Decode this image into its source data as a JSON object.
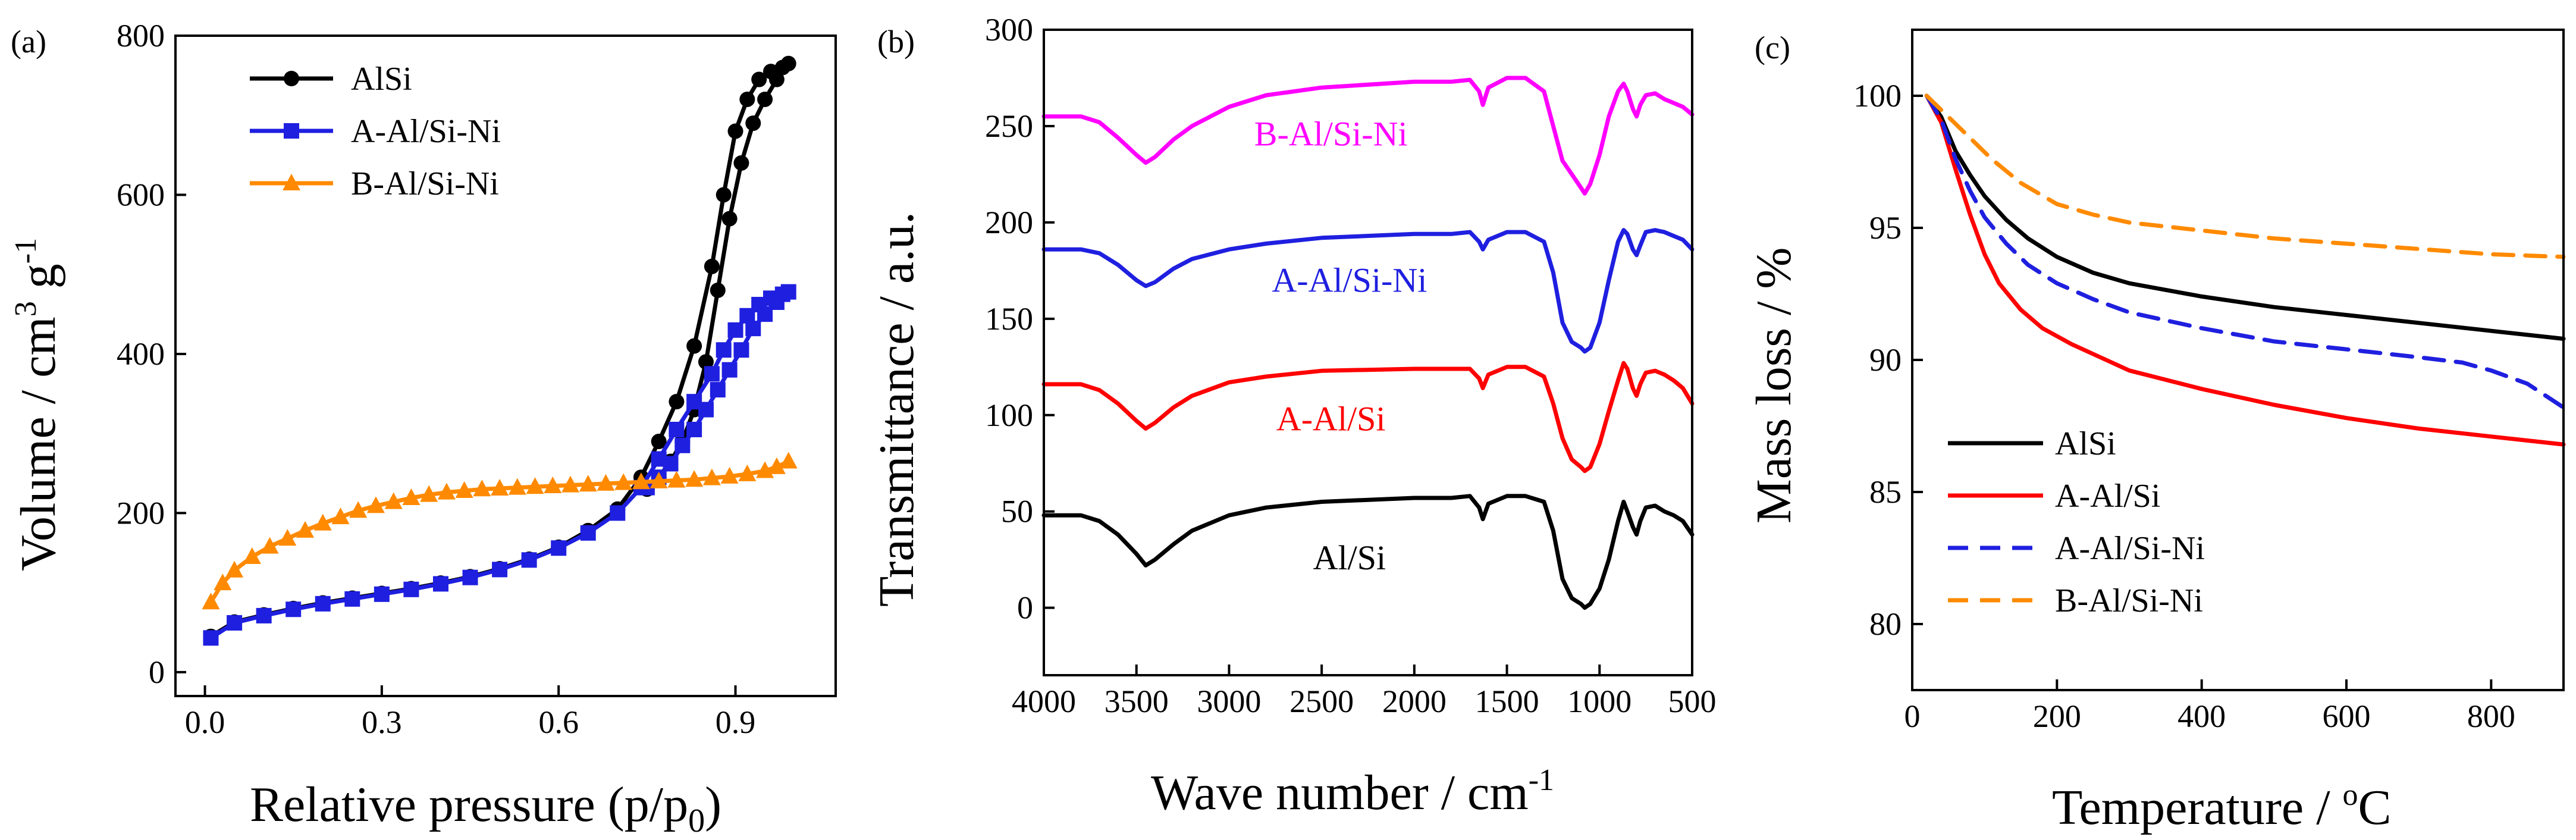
{
  "chart_data": [
    {
      "panel": "(a)",
      "type": "line",
      "xlabel": "Relative pressure (p/p",
      "xlabel_sub": "0",
      "xlabel_close": ")",
      "ylabel": "Volume / cm",
      "ylabel_sup": "3",
      "ylabel_unit": " g",
      "ylabel_sup2": "-1",
      "xlim": [
        -0.05,
        1.07
      ],
      "ylim": [
        -30,
        800
      ],
      "xticks": [
        0.0,
        0.3,
        0.6,
        0.9
      ],
      "xtick_labels": [
        "0.0",
        "0.3",
        "0.6",
        "0.9"
      ],
      "yticks": [
        0,
        200,
        400,
        600,
        800
      ],
      "ytick_labels": [
        "0",
        "200",
        "400",
        "600",
        "800"
      ],
      "legend": "top-left",
      "series": [
        {
          "name": "AlSi",
          "color": "#000000",
          "marker": "circle",
          "x": [
            0.01,
            0.05,
            0.1,
            0.15,
            0.2,
            0.25,
            0.3,
            0.35,
            0.4,
            0.45,
            0.5,
            0.55,
            0.6,
            0.65,
            0.7,
            0.74,
            0.77,
            0.8,
            0.83,
            0.86,
            0.88,
            0.9,
            0.92,
            0.94,
            0.96,
            0.98,
            0.99,
            0.97,
            0.95,
            0.93,
            0.91,
            0.89,
            0.87,
            0.85,
            0.83,
            0.81,
            0.79,
            0.77,
            0.75
          ],
          "y": [
            45,
            63,
            72,
            80,
            87,
            93,
            99,
            105,
            112,
            120,
            130,
            142,
            157,
            178,
            205,
            245,
            290,
            340,
            410,
            510,
            600,
            680,
            720,
            745,
            755,
            760,
            765,
            745,
            720,
            690,
            640,
            570,
            480,
            390,
            330,
            290,
            265,
            245,
            230
          ]
        },
        {
          "name": "A-Al/Si-Ni",
          "color": "#1f1fe0",
          "marker": "square",
          "x": [
            0.01,
            0.05,
            0.1,
            0.15,
            0.2,
            0.25,
            0.3,
            0.35,
            0.4,
            0.45,
            0.5,
            0.55,
            0.6,
            0.65,
            0.7,
            0.74,
            0.77,
            0.8,
            0.83,
            0.86,
            0.88,
            0.9,
            0.92,
            0.94,
            0.96,
            0.98,
            0.99,
            0.97,
            0.95,
            0.93,
            0.91,
            0.89,
            0.87,
            0.85,
            0.83,
            0.81,
            0.79,
            0.77,
            0.75
          ],
          "y": [
            43,
            62,
            71,
            79,
            86,
            92,
            98,
            104,
            111,
            119,
            129,
            141,
            156,
            175,
            200,
            232,
            268,
            305,
            340,
            375,
            405,
            430,
            448,
            462,
            470,
            475,
            478,
            465,
            450,
            432,
            405,
            380,
            355,
            330,
            305,
            285,
            262,
            245,
            232
          ]
        },
        {
          "name": "B-Al/Si-Ni",
          "color": "#ff8a00",
          "marker": "triangle",
          "x": [
            0.01,
            0.03,
            0.05,
            0.08,
            0.11,
            0.14,
            0.17,
            0.2,
            0.23,
            0.26,
            0.29,
            0.32,
            0.35,
            0.38,
            0.41,
            0.44,
            0.47,
            0.5,
            0.53,
            0.56,
            0.59,
            0.62,
            0.65,
            0.68,
            0.71,
            0.74,
            0.77,
            0.8,
            0.83,
            0.86,
            0.89,
            0.92,
            0.95,
            0.97,
            0.99
          ],
          "y": [
            88,
            112,
            128,
            145,
            158,
            168,
            178,
            187,
            195,
            203,
            209,
            214,
            219,
            223,
            226,
            228,
            230,
            231,
            232,
            233,
            234,
            235,
            236,
            237,
            238,
            239,
            240,
            241,
            242,
            244,
            246,
            249,
            253,
            258,
            265
          ]
        }
      ]
    },
    {
      "panel": "(b)",
      "type": "line",
      "xlabel": "Wave number / cm",
      "xlabel_sup": "-1",
      "ylabel": "Transmittance / a.u.",
      "xlim": [
        4000,
        500
      ],
      "ylim": [
        -35,
        300
      ],
      "xticks": [
        4000,
        3500,
        3000,
        2500,
        2000,
        1500,
        1000,
        500
      ],
      "xtick_labels": [
        "4000",
        "3500",
        "3000",
        "2500",
        "2000",
        "1500",
        "1000",
        "500"
      ],
      "yticks": [
        0,
        50,
        100,
        150,
        200,
        250,
        300
      ],
      "ytick_labels": [
        "0",
        "50",
        "100",
        "150",
        "200",
        "250",
        "300"
      ],
      "series": [
        {
          "name": "Al/Si",
          "color": "#000000",
          "x": [
            4000,
            3800,
            3700,
            3600,
            3500,
            3450,
            3400,
            3300,
            3200,
            3000,
            2800,
            2500,
            2000,
            1800,
            1700,
            1650,
            1630,
            1600,
            1500,
            1400,
            1300,
            1250,
            1200,
            1150,
            1100,
            1080,
            1050,
            1000,
            950,
            900,
            870,
            850,
            820,
            800,
            780,
            750,
            700,
            650,
            600,
            550,
            500
          ],
          "y": [
            48,
            48,
            45,
            38,
            28,
            22,
            25,
            33,
            40,
            48,
            52,
            55,
            57,
            57,
            58,
            52,
            46,
            54,
            58,
            58,
            55,
            40,
            15,
            5,
            2,
            0,
            2,
            10,
            25,
            45,
            55,
            50,
            42,
            38,
            45,
            52,
            53,
            50,
            48,
            45,
            38
          ]
        },
        {
          "name": "A-Al/Si",
          "color": "#ff0000",
          "x": [
            4000,
            3800,
            3700,
            3600,
            3500,
            3450,
            3400,
            3300,
            3200,
            3000,
            2800,
            2500,
            2000,
            1800,
            1700,
            1650,
            1630,
            1600,
            1500,
            1400,
            1300,
            1250,
            1200,
            1150,
            1100,
            1080,
            1050,
            1000,
            950,
            900,
            870,
            850,
            820,
            800,
            780,
            750,
            700,
            650,
            600,
            550,
            500
          ],
          "y": [
            116,
            116,
            113,
            106,
            97,
            93,
            96,
            104,
            110,
            117,
            120,
            123,
            124,
            124,
            124,
            119,
            114,
            121,
            125,
            125,
            120,
            106,
            88,
            77,
            73,
            71,
            73,
            85,
            102,
            118,
            127,
            124,
            114,
            110,
            116,
            122,
            123,
            121,
            118,
            114,
            106
          ]
        },
        {
          "name": "A-Al/Si-Ni",
          "color": "#1f1fe0",
          "x": [
            4000,
            3800,
            3700,
            3600,
            3500,
            3450,
            3400,
            3300,
            3200,
            3000,
            2800,
            2500,
            2000,
            1800,
            1700,
            1650,
            1630,
            1600,
            1500,
            1400,
            1300,
            1250,
            1200,
            1150,
            1100,
            1080,
            1050,
            1000,
            950,
            900,
            870,
            850,
            820,
            800,
            780,
            750,
            700,
            650,
            600,
            550,
            500
          ],
          "y": [
            186,
            186,
            184,
            178,
            170,
            167,
            169,
            176,
            181,
            186,
            189,
            192,
            194,
            194,
            195,
            190,
            186,
            191,
            195,
            195,
            190,
            174,
            148,
            138,
            135,
            133,
            135,
            148,
            170,
            190,
            196,
            194,
            186,
            183,
            188,
            195,
            196,
            195,
            193,
            191,
            186
          ]
        },
        {
          "name": "B-Al/Si-Ni",
          "color": "#ff00ff",
          "x": [
            4000,
            3800,
            3700,
            3600,
            3500,
            3450,
            3400,
            3300,
            3200,
            3000,
            2800,
            2500,
            2000,
            1800,
            1700,
            1650,
            1630,
            1600,
            1500,
            1400,
            1300,
            1250,
            1200,
            1150,
            1100,
            1080,
            1050,
            1000,
            950,
            900,
            870,
            850,
            820,
            800,
            780,
            750,
            700,
            650,
            600,
            550,
            500
          ],
          "y": [
            255,
            255,
            252,
            244,
            235,
            231,
            234,
            243,
            250,
            260,
            266,
            270,
            273,
            273,
            274,
            268,
            261,
            270,
            275,
            275,
            268,
            250,
            232,
            225,
            218,
            215,
            220,
            235,
            255,
            268,
            272,
            268,
            259,
            255,
            261,
            266,
            267,
            264,
            262,
            260,
            256
          ]
        }
      ],
      "annotations": [
        {
          "text": "B-Al/Si-Ni",
          "color": "#ff00ff",
          "x": 2450,
          "y": 240
        },
        {
          "text": "A-Al/Si-Ni",
          "color": "#1f1fe0",
          "x": 2350,
          "y": 164
        },
        {
          "text": "A-Al/Si",
          "color": "#ff0000",
          "x": 2450,
          "y": 92
        },
        {
          "text": "Al/Si",
          "color": "#000000",
          "x": 2350,
          "y": 20
        }
      ]
    },
    {
      "panel": "(c)",
      "type": "line",
      "xlabel": "Temperature / ",
      "xlabel_sup": "o",
      "xlabel_unit": "C",
      "ylabel": "Mass loss / %",
      "xlim": [
        0,
        900
      ],
      "ylim": [
        77.5,
        102.5
      ],
      "xticks": [
        0,
        200,
        400,
        600,
        800
      ],
      "xtick_labels": [
        "0",
        "200",
        "400",
        "600",
        "800"
      ],
      "yticks": [
        80,
        85,
        90,
        95,
        100
      ],
      "ytick_labels": [
        "80",
        "85",
        "90",
        "95",
        "100"
      ],
      "legend": "bottom-left",
      "series": [
        {
          "name": "AlSi",
          "color": "#000000",
          "dash": "solid",
          "x": [
            20,
            40,
            60,
            80,
            100,
            130,
            160,
            200,
            250,
            300,
            400,
            500,
            600,
            700,
            800,
            900
          ],
          "y": [
            100,
            99.2,
            97.9,
            97.0,
            96.2,
            95.3,
            94.6,
            93.9,
            93.3,
            92.9,
            92.4,
            92.0,
            91.7,
            91.4,
            91.1,
            90.8
          ]
        },
        {
          "name": "A-Al/Si",
          "color": "#ff0000",
          "dash": "solid",
          "x": [
            20,
            40,
            60,
            80,
            100,
            120,
            150,
            180,
            220,
            300,
            400,
            500,
            600,
            700,
            800,
            900
          ],
          "y": [
            100,
            99.0,
            97.2,
            95.5,
            94.0,
            92.9,
            91.9,
            91.2,
            90.6,
            89.6,
            88.9,
            88.3,
            87.8,
            87.4,
            87.1,
            86.8
          ]
        },
        {
          "name": "A-Al/Si-Ni",
          "color": "#1f1fe0",
          "dash": "dashed",
          "x": [
            20,
            40,
            60,
            80,
            100,
            130,
            160,
            200,
            250,
            300,
            400,
            500,
            600,
            700,
            760,
            800,
            850,
            900
          ],
          "y": [
            100,
            99.1,
            97.6,
            96.4,
            95.4,
            94.4,
            93.6,
            92.9,
            92.3,
            91.8,
            91.2,
            90.7,
            90.4,
            90.1,
            89.9,
            89.6,
            89.1,
            88.2
          ]
        },
        {
          "name": "B-Al/Si-Ni",
          "color": "#ff8a00",
          "dash": "dashed",
          "x": [
            20,
            50,
            80,
            110,
            150,
            200,
            250,
            300,
            400,
            500,
            600,
            700,
            800,
            900
          ],
          "y": [
            100,
            99.2,
            98.4,
            97.6,
            96.7,
            95.9,
            95.5,
            95.2,
            94.9,
            94.6,
            94.4,
            94.2,
            94.0,
            93.9
          ]
        }
      ]
    }
  ]
}
